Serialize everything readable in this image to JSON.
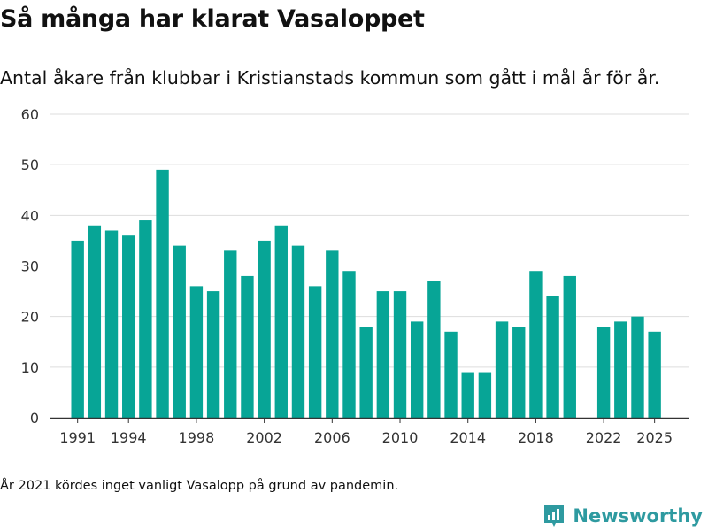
{
  "header": {
    "title": "Så många har klarat Vasaloppet",
    "subtitle": "Antal åkare från klubbar i Kristianstads kommun som gått i mål år för år."
  },
  "footnote": "År 2021 kördes inget vanligt Vasalopp på grund av pandemin.",
  "brand": {
    "name": "Newsworthy",
    "icon": "bar-chart-logo-icon"
  },
  "colors": {
    "bar": "#07a596",
    "grid": "#dddddd",
    "axis": "#333333",
    "text": "#333333",
    "brand": "#2e9aa0"
  },
  "chart_data": {
    "type": "bar",
    "title": "Så många har klarat Vasaloppet",
    "xlabel": "",
    "ylabel": "",
    "ylim": [
      0,
      60
    ],
    "yticks": [
      0,
      10,
      20,
      30,
      40,
      50,
      60
    ],
    "xlim": [
      1989.4,
      2027.0
    ],
    "xticks": [
      1991,
      1994,
      1998,
      2002,
      2006,
      2010,
      2014,
      2018,
      2022,
      2025
    ],
    "grid": true,
    "categories": [
      1991,
      1992,
      1993,
      1994,
      1995,
      1996,
      1997,
      1998,
      1999,
      2000,
      2001,
      2002,
      2003,
      2004,
      2005,
      2006,
      2007,
      2008,
      2009,
      2010,
      2011,
      2012,
      2013,
      2014,
      2015,
      2016,
      2017,
      2018,
      2019,
      2020,
      2021,
      2022,
      2023,
      2024,
      2025
    ],
    "values": [
      35,
      38,
      37,
      36,
      39,
      49,
      34,
      26,
      25,
      33,
      28,
      35,
      38,
      34,
      26,
      33,
      29,
      18,
      25,
      25,
      19,
      27,
      17,
      9,
      9,
      19,
      18,
      29,
      24,
      28,
      null,
      18,
      19,
      20,
      17
    ]
  }
}
